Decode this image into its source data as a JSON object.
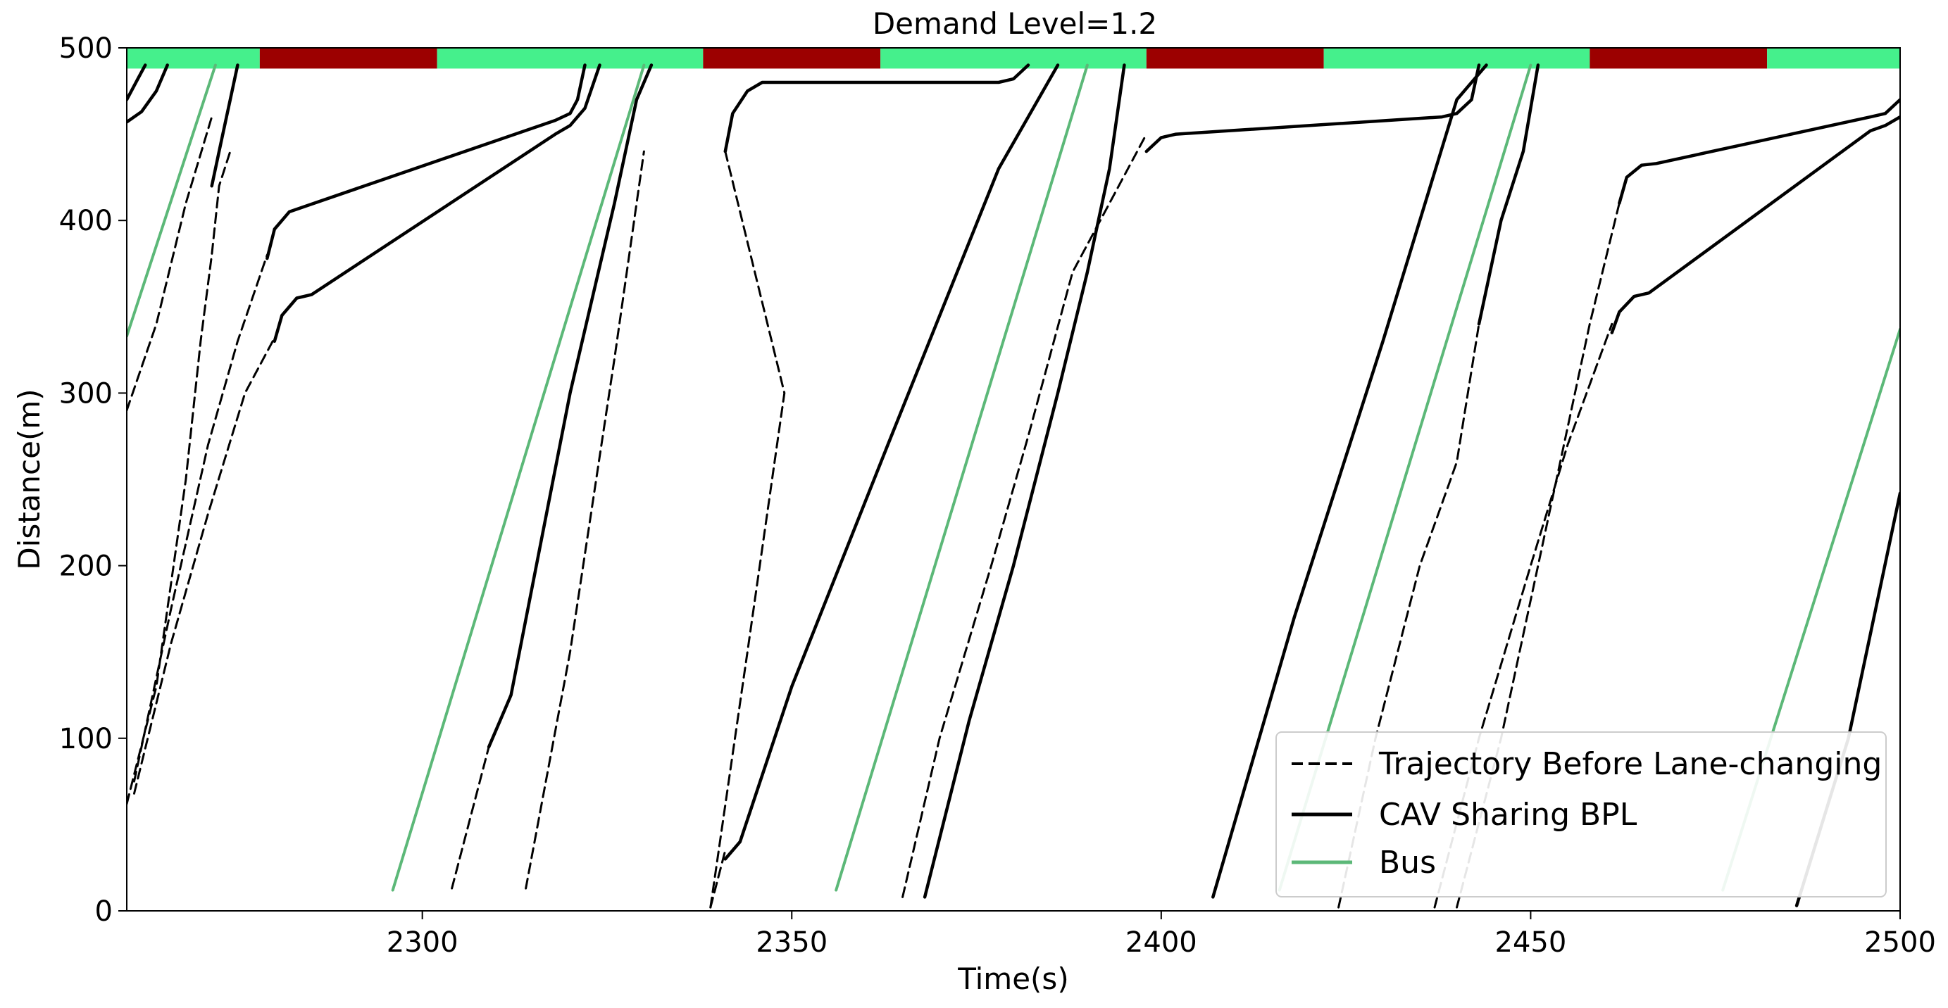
{
  "chart_data": {
    "type": "line",
    "title": "Demand Level=1.2",
    "xlabel": "Time(s)",
    "ylabel": "Distance(m)",
    "xlim": [
      2260,
      2500
    ],
    "ylim": [
      0,
      500
    ],
    "xticks": [
      2300,
      2350,
      2400,
      2450,
      2500
    ],
    "yticks": [
      0,
      100,
      200,
      300,
      400,
      500
    ],
    "grid": false,
    "legend_position": "bottom-right",
    "legend": [
      {
        "label": "Trajectory Before Lane-changing",
        "style": "dashed",
        "color": "#000000"
      },
      {
        "label": "CAV Sharing BPL",
        "style": "solid",
        "color": "#000000"
      },
      {
        "label": "Bus",
        "style": "solid",
        "color": "#5cb878"
      }
    ],
    "signal_bar": {
      "y_bottom": 488,
      "y_top": 500,
      "segments": [
        {
          "start": 2260,
          "end": 2278,
          "state": "green"
        },
        {
          "start": 2278,
          "end": 2302,
          "state": "red"
        },
        {
          "start": 2302,
          "end": 2338,
          "state": "green"
        },
        {
          "start": 2338,
          "end": 2362,
          "state": "red"
        },
        {
          "start": 2362,
          "end": 2398,
          "state": "green"
        },
        {
          "start": 2398,
          "end": 2422,
          "state": "red"
        },
        {
          "start": 2422,
          "end": 2458,
          "state": "green"
        },
        {
          "start": 2458,
          "end": 2482,
          "state": "red"
        },
        {
          "start": 2482,
          "end": 2500,
          "state": "green"
        }
      ],
      "colors": {
        "green": "#45f08c",
        "red": "#9c0000"
      }
    },
    "series": [
      {
        "style": "dashed",
        "color": "#000000",
        "points": [
          [
            2260,
            62
          ],
          [
            2264,
            130
          ],
          [
            2268,
            250
          ],
          [
            2270,
            330
          ],
          [
            2271.5,
            380
          ],
          [
            2272.5,
            420
          ],
          [
            2274,
            440
          ]
        ]
      },
      {
        "style": "dashed",
        "color": "#000000",
        "points": [
          [
            2260,
            290
          ],
          [
            2264,
            340
          ],
          [
            2268,
            410
          ],
          [
            2271.5,
            460
          ]
        ]
      },
      {
        "style": "dashed",
        "color": "#000000",
        "points": [
          [
            2261,
            75
          ],
          [
            2266,
            175
          ],
          [
            2271,
            270
          ],
          [
            2275,
            330
          ],
          [
            2279,
            380
          ]
        ]
      },
      {
        "style": "dashed",
        "color": "#000000",
        "points": [
          [
            2261,
            68
          ],
          [
            2266,
            155
          ],
          [
            2271,
            230
          ],
          [
            2276,
            300
          ],
          [
            2280,
            332
          ]
        ]
      },
      {
        "style": "dashed",
        "color": "#000000",
        "points": [
          [
            2304,
            13
          ],
          [
            2309,
            95
          ]
        ]
      },
      {
        "style": "dashed",
        "color": "#000000",
        "points": [
          [
            2314,
            13
          ],
          [
            2320,
            150
          ],
          [
            2326,
            320
          ],
          [
            2330,
            440
          ]
        ]
      },
      {
        "style": "dashed",
        "color": "#000000",
        "points": [
          [
            2339,
            2
          ],
          [
            2341,
            35
          ]
        ]
      },
      {
        "style": "dashed",
        "color": "#000000",
        "points": [
          [
            2339,
            2
          ],
          [
            2344,
            150
          ],
          [
            2349,
            300
          ],
          [
            2341,
            440
          ]
        ]
      },
      {
        "style": "dashed",
        "color": "#000000",
        "points": [
          [
            2365,
            8
          ],
          [
            2370,
            100
          ],
          [
            2377,
            200
          ],
          [
            2382,
            275
          ],
          [
            2388,
            370
          ],
          [
            2393,
            410
          ],
          [
            2398,
            450
          ]
        ]
      },
      {
        "style": "dashed",
        "color": "#000000",
        "points": [
          [
            2424,
            2
          ],
          [
            2429,
            100
          ],
          [
            2435,
            200
          ],
          [
            2440,
            260
          ],
          [
            2443,
            340
          ]
        ]
      },
      {
        "style": "dashed",
        "color": "#000000",
        "points": [
          [
            2437,
            2
          ],
          [
            2443,
            100
          ],
          [
            2450,
            200
          ],
          [
            2455,
            270
          ],
          [
            2461,
            340
          ]
        ]
      },
      {
        "style": "dashed",
        "color": "#000000",
        "points": [
          [
            2440,
            2
          ],
          [
            2446,
            100
          ],
          [
            2452,
            220
          ],
          [
            2458,
            340
          ],
          [
            2462,
            410
          ]
        ]
      },
      {
        "style": "solid",
        "color": "#000000",
        "points": [
          [
            2260,
            457
          ],
          [
            2262,
            463
          ],
          [
            2264,
            475
          ],
          [
            2265.5,
            490
          ]
        ]
      },
      {
        "style": "solid",
        "color": "#000000",
        "points": [
          [
            2260,
            470
          ],
          [
            2261.5,
            482
          ],
          [
            2262.5,
            490
          ]
        ]
      },
      {
        "style": "solid",
        "color": "#000000",
        "points": [
          [
            2271.5,
            420
          ],
          [
            2272.5,
            440
          ],
          [
            2273.5,
            460
          ],
          [
            2274,
            470
          ],
          [
            2275,
            490
          ]
        ]
      },
      {
        "style": "solid",
        "color": "#000000",
        "points": [
          [
            2279,
            378
          ],
          [
            2280,
            395
          ],
          [
            2282,
            405
          ],
          [
            2284,
            408
          ],
          [
            2318,
            458
          ],
          [
            2320,
            462
          ],
          [
            2321,
            470
          ],
          [
            2322,
            490
          ]
        ]
      },
      {
        "style": "solid",
        "color": "#000000",
        "points": [
          [
            2280,
            330
          ],
          [
            2281,
            345
          ],
          [
            2283,
            355
          ],
          [
            2285,
            357
          ],
          [
            2318,
            450
          ],
          [
            2320,
            455
          ],
          [
            2322,
            465
          ],
          [
            2324,
            490
          ]
        ]
      },
      {
        "style": "solid",
        "color": "#000000",
        "points": [
          [
            2309,
            95
          ],
          [
            2312,
            125
          ],
          [
            2320,
            300
          ],
          [
            2326,
            410
          ],
          [
            2329,
            470
          ],
          [
            2331,
            490
          ]
        ]
      },
      {
        "style": "solid",
        "color": "#000000",
        "points": [
          [
            2341,
            30
          ],
          [
            2343,
            40
          ],
          [
            2350,
            130
          ],
          [
            2363,
            270
          ],
          [
            2378,
            430
          ],
          [
            2386,
            490
          ]
        ]
      },
      {
        "style": "solid",
        "color": "#000000",
        "points": [
          [
            2341,
            440
          ],
          [
            2342,
            462
          ],
          [
            2344,
            475
          ],
          [
            2346,
            480
          ],
          [
            2378,
            480
          ],
          [
            2380,
            482
          ],
          [
            2382,
            490
          ]
        ]
      },
      {
        "style": "solid",
        "color": "#000000",
        "points": [
          [
            2368,
            8
          ],
          [
            2374,
            110
          ],
          [
            2380,
            200
          ],
          [
            2386,
            300
          ],
          [
            2390,
            370
          ],
          [
            2393,
            430
          ],
          [
            2395,
            490
          ]
        ]
      },
      {
        "style": "solid",
        "color": "#000000",
        "points": [
          [
            2398,
            440
          ],
          [
            2400,
            448
          ],
          [
            2402,
            450
          ],
          [
            2438,
            460
          ],
          [
            2440,
            462
          ],
          [
            2442,
            470
          ],
          [
            2443,
            490
          ]
        ]
      },
      {
        "style": "solid",
        "color": "#000000",
        "points": [
          [
            2407,
            8
          ],
          [
            2418,
            170
          ],
          [
            2430,
            330
          ],
          [
            2440,
            470
          ],
          [
            2444,
            490
          ]
        ]
      },
      {
        "style": "solid",
        "color": "#000000",
        "points": [
          [
            2443,
            340
          ],
          [
            2446,
            400
          ],
          [
            2449,
            440
          ],
          [
            2451,
            490
          ]
        ]
      },
      {
        "style": "solid",
        "color": "#000000",
        "points": [
          [
            2462,
            410
          ],
          [
            2463,
            425
          ],
          [
            2465,
            432
          ],
          [
            2467,
            433
          ],
          [
            2496,
            460
          ],
          [
            2498,
            462
          ],
          [
            2499,
            466
          ],
          [
            2500,
            470
          ]
        ]
      },
      {
        "style": "solid",
        "color": "#000000",
        "points": [
          [
            2461,
            335
          ],
          [
            2462,
            347
          ],
          [
            2464,
            356
          ],
          [
            2466,
            358
          ],
          [
            2496,
            452
          ],
          [
            2498,
            455
          ],
          [
            2500,
            460
          ]
        ]
      },
      {
        "style": "solid",
        "color": "#000000",
        "points": [
          [
            2486,
            3
          ],
          [
            2493,
            100
          ],
          [
            2500,
            242
          ]
        ]
      },
      {
        "style": "solid",
        "color": "#5cb878",
        "points": [
          [
            2260,
            333
          ],
          [
            2272,
            490
          ]
        ]
      },
      {
        "style": "solid",
        "color": "#5cb878",
        "points": [
          [
            2296,
            12
          ],
          [
            2330,
            490
          ]
        ]
      },
      {
        "style": "solid",
        "color": "#5cb878",
        "points": [
          [
            2356,
            12
          ],
          [
            2390,
            490
          ]
        ]
      },
      {
        "style": "solid",
        "color": "#5cb878",
        "points": [
          [
            2416,
            12
          ],
          [
            2450,
            490
          ]
        ]
      },
      {
        "style": "solid",
        "color": "#5cb878",
        "points": [
          [
            2476,
            12
          ],
          [
            2500,
            337
          ]
        ]
      }
    ]
  }
}
